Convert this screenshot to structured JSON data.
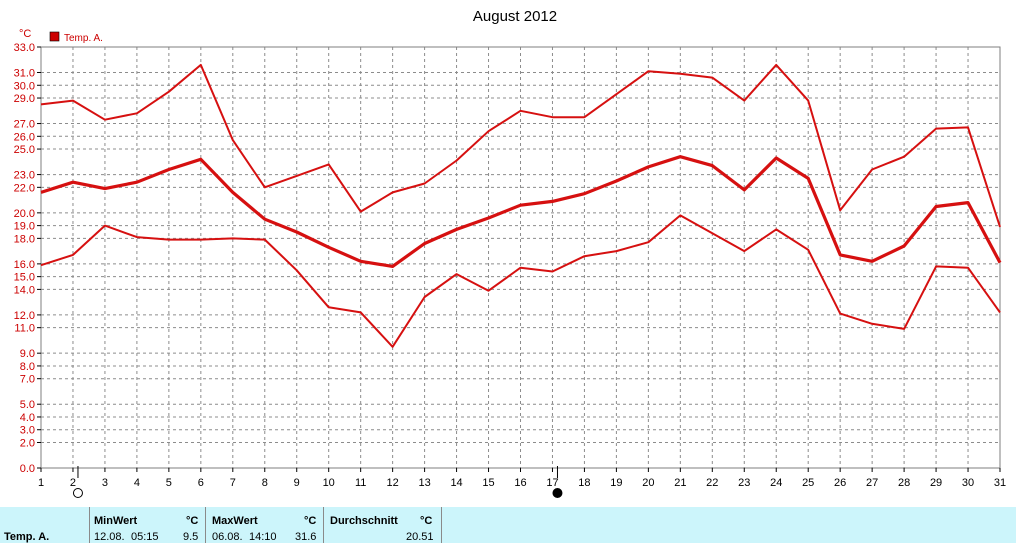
{
  "chart_data": {
    "type": "line",
    "title": "August 2012",
    "ylabel": "°C",
    "legend": [
      "Temp. A."
    ],
    "legend_position": "top-left",
    "grid": true,
    "xlim": [
      1,
      31
    ],
    "ylim": [
      0,
      33
    ],
    "x": [
      1,
      2,
      3,
      4,
      5,
      6,
      7,
      8,
      9,
      10,
      11,
      12,
      13,
      14,
      15,
      16,
      17,
      18,
      19,
      20,
      21,
      22,
      23,
      24,
      25,
      26,
      27,
      28,
      29,
      30,
      31
    ],
    "x_tick_labels": [
      "1",
      "2",
      "3",
      "4",
      "5",
      "6",
      "7",
      "8",
      "9",
      "10",
      "11",
      "12",
      "13",
      "14",
      "15",
      "16",
      "17",
      "18",
      "19",
      "20",
      "21",
      "22",
      "23",
      "24",
      "25",
      "26",
      "27",
      "28",
      "29",
      "30",
      "31"
    ],
    "y_tick_labels": [
      "0.0",
      "2.0",
      "3.0",
      "4.0",
      "5.0",
      "7.0",
      "8.0",
      "9.0",
      "11.0",
      "12.0",
      "14.0",
      "15.0",
      "16.0",
      "18.0",
      "19.0",
      "20.0",
      "22.0",
      "23.0",
      "25.0",
      "26.0",
      "27.0",
      "29.0",
      "30.0",
      "31.0",
      "33.0"
    ],
    "y_ticks": [
      0,
      2,
      3,
      4,
      5,
      7,
      8,
      9,
      11,
      12,
      14,
      15,
      16,
      18,
      19,
      20,
      22,
      23,
      25,
      26,
      27,
      29,
      30,
      31,
      33
    ],
    "series": [
      {
        "role": "max",
        "values": [
          28.5,
          28.8,
          27.3,
          27.8,
          29.5,
          31.6,
          25.7,
          22.0,
          22.9,
          23.8,
          20.1,
          21.6,
          22.3,
          24.1,
          26.4,
          28.0,
          27.5,
          27.5,
          29.3,
          31.1,
          30.9,
          30.6,
          28.8,
          31.6,
          28.8,
          20.2,
          23.4,
          24.4,
          26.6,
          26.7,
          18.9
        ]
      },
      {
        "role": "average",
        "values": [
          21.6,
          22.4,
          21.9,
          22.4,
          23.4,
          24.2,
          21.6,
          19.5,
          18.5,
          17.3,
          16.2,
          15.8,
          17.6,
          18.7,
          19.6,
          20.6,
          20.9,
          21.5,
          22.5,
          23.6,
          24.4,
          23.7,
          21.8,
          24.3,
          22.7,
          16.7,
          16.2,
          17.4,
          20.5,
          20.8,
          16.1
        ]
      },
      {
        "role": "min",
        "values": [
          15.9,
          16.7,
          19.0,
          18.1,
          17.9,
          17.9,
          18.0,
          17.9,
          15.5,
          12.6,
          12.2,
          9.5,
          13.4,
          15.2,
          13.9,
          15.7,
          15.4,
          16.6,
          17.0,
          17.7,
          19.8,
          18.4,
          17.0,
          18.7,
          17.1,
          12.1,
          11.3,
          10.9,
          15.8,
          15.7,
          12.2
        ]
      }
    ],
    "moon_phases": [
      {
        "day": 2,
        "phase": "full-moon"
      },
      {
        "day": 17,
        "phase": "new-moon"
      }
    ],
    "line_color": "#d61010",
    "grid_color": "#8c8c8c"
  },
  "footer": {
    "series_label": "Temp. A.",
    "min": {
      "header": "MinWert",
      "unit": "°C",
      "date": "12.08.",
      "time": "05:15",
      "value": "9.5"
    },
    "max": {
      "header": "MaxWert",
      "unit": "°C",
      "date": "06.08.",
      "time": "14:10",
      "value": "31.6"
    },
    "avg": {
      "header": "Durchschnitt",
      "unit": "°C",
      "value": "20.51"
    }
  }
}
